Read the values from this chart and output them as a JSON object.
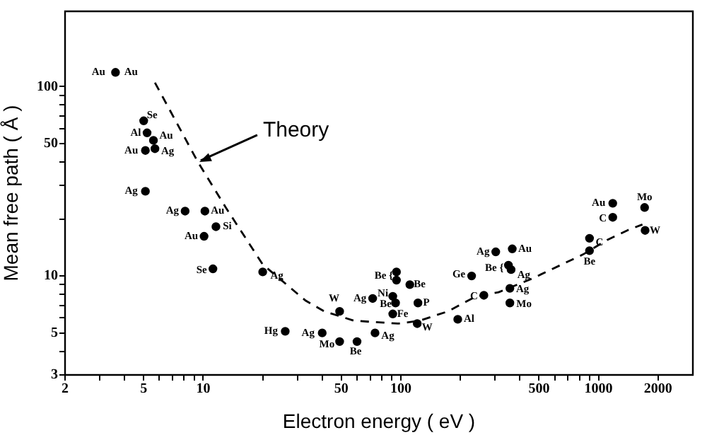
{
  "chart_data": {
    "type": "scatter",
    "xlabel": "Electron energy ( eV )",
    "ylabel": "Mean free path ( Å )",
    "log": "xy",
    "grid": false,
    "legend": false,
    "marker": "circle",
    "xlim": [
      2,
      3000
    ],
    "ylim": [
      3,
      250
    ],
    "xticks": [
      2,
      {
        "value": 3,
        "label": null
      },
      {
        "value": 4,
        "label": null
      },
      5,
      {
        "value": 6,
        "label": null
      },
      {
        "value": 7,
        "label": null
      },
      {
        "value": 8,
        "label": null
      },
      {
        "value": 9,
        "label": null
      },
      10,
      {
        "value": 20,
        "label": null
      },
      {
        "value": 30,
        "label": null
      },
      {
        "value": 40,
        "label": null
      },
      50,
      {
        "value": 60,
        "label": null
      },
      {
        "value": 70,
        "label": null
      },
      {
        "value": 80,
        "label": null
      },
      {
        "value": 90,
        "label": null
      },
      100,
      {
        "value": 200,
        "label": null
      },
      {
        "value": 300,
        "label": null
      },
      {
        "value": 400,
        "label": null
      },
      500,
      {
        "value": 600,
        "label": null
      },
      {
        "value": 700,
        "label": null
      },
      {
        "value": 800,
        "label": null
      },
      {
        "value": 900,
        "label": null
      },
      1000,
      2000
    ],
    "yticks": [
      3,
      {
        "value": 4,
        "label": null
      },
      5,
      {
        "value": 6,
        "label": null
      },
      {
        "value": 7,
        "label": null
      },
      {
        "value": 8,
        "label": null
      },
      {
        "value": 9,
        "label": null
      },
      10,
      {
        "value": 20,
        "label": null
      },
      {
        "value": 30,
        "label": null
      },
      {
        "value": 40,
        "label": null
      },
      50,
      {
        "value": 60,
        "label": null
      },
      {
        "value": 70,
        "label": null
      },
      {
        "value": 80,
        "label": null
      },
      {
        "value": 90,
        "label": null
      },
      100
    ],
    "series": [
      {
        "type": "scatter",
        "color": "#000000",
        "x": [
          3.6,
          5.0,
          5.2,
          5.6,
          5.7,
          5.1,
          5.1,
          8.1,
          10.2,
          11.6,
          10.1,
          11.2,
          20,
          26,
          49,
          72,
          91,
          95,
          95,
          111,
          94,
          122,
          91,
          121,
          194,
          40,
          49,
          60,
          74,
          228,
          263,
          302,
          366,
          350,
          361,
          356,
          356,
          1180,
          1180,
          1710,
          1720,
          900,
          900
        ],
        "values": [
          119,
          66,
          57,
          52,
          47,
          46,
          28,
          22,
          22,
          18.2,
          16.2,
          10.9,
          10.5,
          5.1,
          6.5,
          7.6,
          7.8,
          10.5,
          9.5,
          9.0,
          7.2,
          7.2,
          6.3,
          5.6,
          5.9,
          5.0,
          4.5,
          4.5,
          5.0,
          10.0,
          7.9,
          13.4,
          13.9,
          11.4,
          10.8,
          8.6,
          7.2,
          24.2,
          20.4,
          23.0,
          17.4,
          15.8,
          13.6
        ]
      },
      {
        "type": "line",
        "name": "Theory",
        "color": "#000000",
        "line_style": "dashed",
        "marker": "none",
        "x": [
          5.7,
          9.4,
          13,
          20,
          33,
          41,
          58,
          97,
          124,
          173,
          240,
          312,
          463,
          836,
          1106,
          1416,
          1667
        ],
        "values": [
          105,
          40,
          23,
          11.5,
          7.4,
          6.5,
          5.8,
          5.6,
          5.8,
          6.5,
          7.8,
          8.2,
          9.7,
          13,
          15.5,
          17.5,
          18.7
        ]
      }
    ],
    "annotations": [
      {
        "text": "Au",
        "x": 3.6,
        "y": 119
      },
      {
        "text": "Au",
        "x": 3.6,
        "y": 119
      },
      {
        "text": "Se",
        "x": 5.0,
        "y": 66
      },
      {
        "text": "Al",
        "x": 5.2,
        "y": 57
      },
      {
        "text": "Au",
        "x": 5.6,
        "y": 52
      },
      {
        "text": "Ag",
        "x": 5.7,
        "y": 47
      },
      {
        "text": "Au",
        "x": 5.1,
        "y": 46
      },
      {
        "text": "Ag",
        "x": 5.1,
        "y": 28
      },
      {
        "text": "Ag",
        "x": 8.1,
        "y": 22
      },
      {
        "text": "Au",
        "x": 10.2,
        "y": 22
      },
      {
        "text": "Si",
        "x": 11.6,
        "y": 18.2
      },
      {
        "text": "Au",
        "x": 10.1,
        "y": 16.2
      },
      {
        "text": "Se",
        "x": 11.2,
        "y": 10.9
      },
      {
        "text": "Ag",
        "x": 20,
        "y": 10.5
      },
      {
        "text": "Hg",
        "x": 26,
        "y": 5.1
      },
      {
        "text": "W",
        "x": 49,
        "y": 6.5
      },
      {
        "text": "Ag",
        "x": 72,
        "y": 7.6
      },
      {
        "text": "Ni",
        "x": 91,
        "y": 7.8
      },
      {
        "text": "Be {",
        "x": 95,
        "y": 10.5
      },
      {
        "text": "Be",
        "x": 111,
        "y": 9.0
      },
      {
        "text": "Be",
        "x": 94,
        "y": 7.2
      },
      {
        "text": "P",
        "x": 122,
        "y": 7.2
      },
      {
        "text": "Fe",
        "x": 91,
        "y": 6.3
      },
      {
        "text": "W",
        "x": 121,
        "y": 5.6
      },
      {
        "text": "Al",
        "x": 194,
        "y": 5.9
      },
      {
        "text": "Ag",
        "x": 40,
        "y": 5.0
      },
      {
        "text": "Mo",
        "x": 49,
        "y": 4.5
      },
      {
        "text": "Be",
        "x": 60,
        "y": 4.5
      },
      {
        "text": "Ag",
        "x": 74,
        "y": 5.0
      },
      {
        "text": "Ge",
        "x": 228,
        "y": 10.0
      },
      {
        "text": "C",
        "x": 263,
        "y": 7.9
      },
      {
        "text": "Ag",
        "x": 302,
        "y": 13.4
      },
      {
        "text": "Au",
        "x": 366,
        "y": 13.9
      },
      {
        "text": "Be {",
        "x": 350,
        "y": 11.4
      },
      {
        "text": "Ag",
        "x": 361,
        "y": 10.8
      },
      {
        "text": "Ag",
        "x": 356,
        "y": 8.6
      },
      {
        "text": "Mo",
        "x": 356,
        "y": 7.2
      },
      {
        "text": "Au",
        "x": 1180,
        "y": 24.2
      },
      {
        "text": "C",
        "x": 1180,
        "y": 20.4
      },
      {
        "text": "Mo",
        "x": 1710,
        "y": 23.0
      },
      {
        "text": "W",
        "x": 1720,
        "y": 17.4
      },
      {
        "text": "C",
        "x": 900,
        "y": 15.8
      },
      {
        "text": "Be",
        "x": 900,
        "y": 13.6
      }
    ]
  }
}
